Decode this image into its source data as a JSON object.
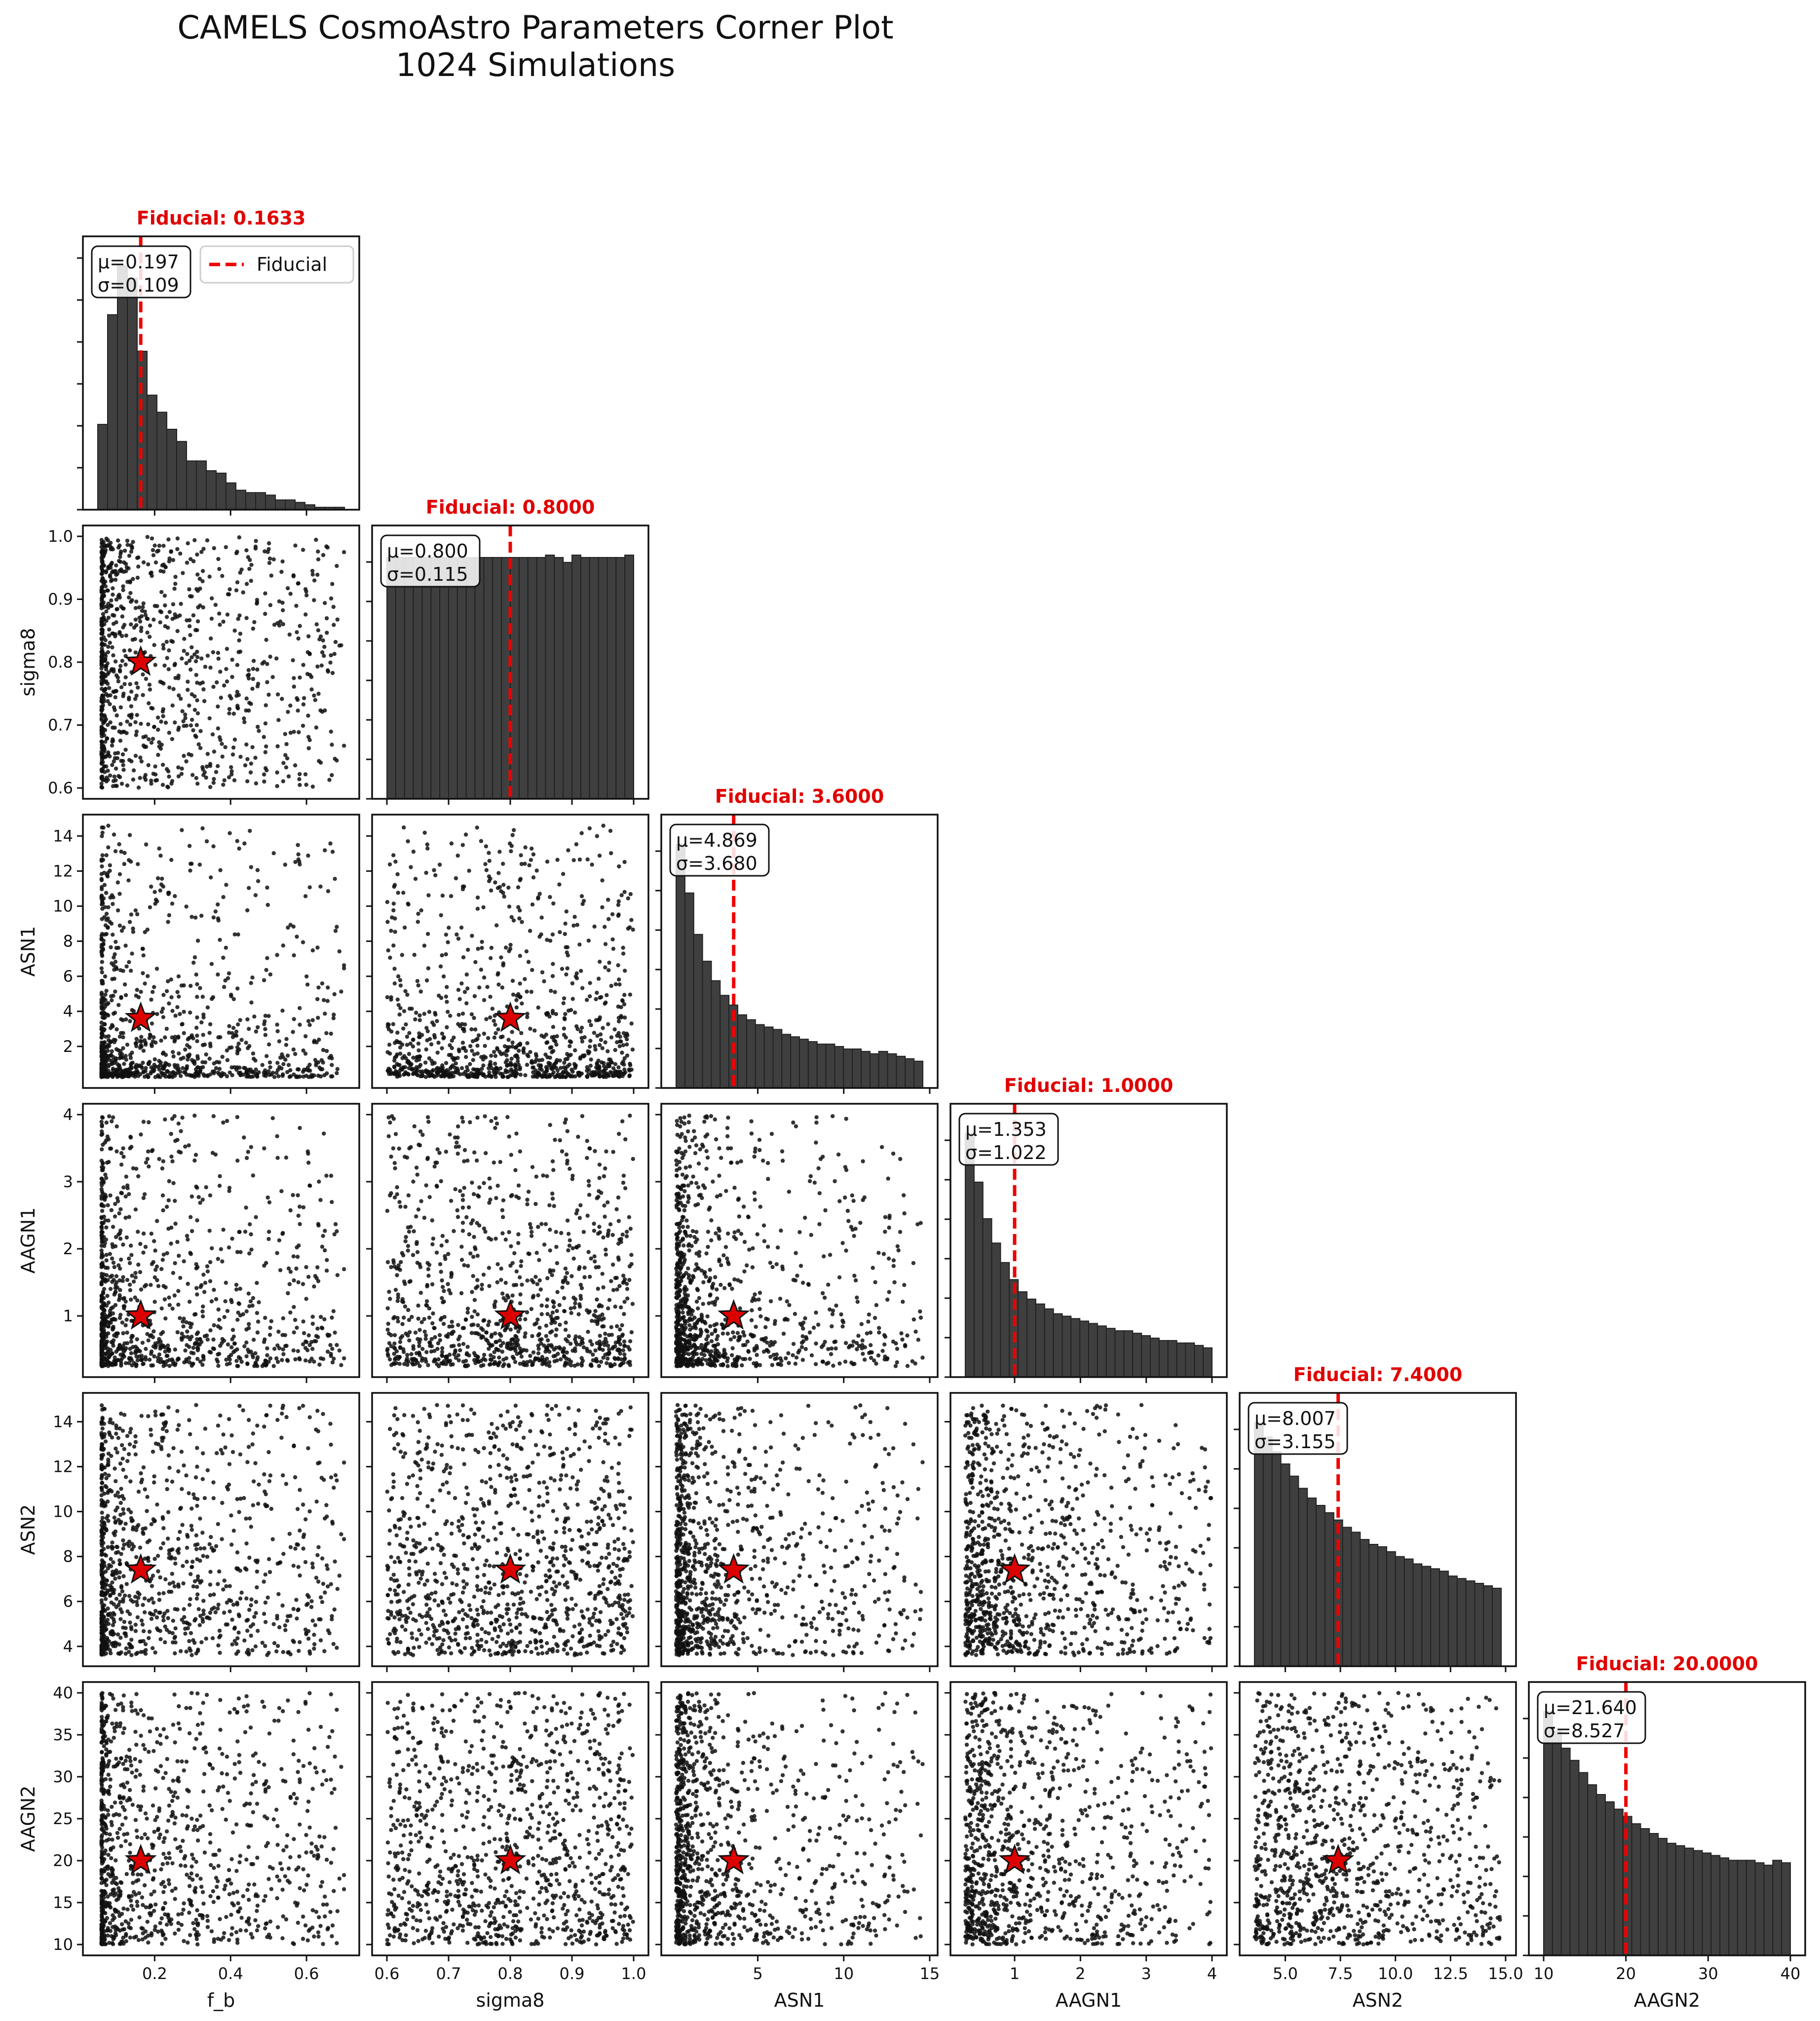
{
  "figure": {
    "title_line1": "CAMELS CosmoAstro Parameters Corner Plot",
    "title_line2": "1024 Simulations",
    "legend_label": "Fiducial",
    "colors": {
      "hist_fill": "#3f3f3f",
      "hist_edge": "#222222",
      "fiducial": "#ee0000",
      "points": "#111111",
      "star_fill": "#dd0000"
    }
  },
  "chart_data": {
    "type": "corner",
    "n_simulations": 1024,
    "grid": false,
    "legend_location": "upper right of first histogram",
    "parameters": [
      {
        "name": "f_b",
        "label": "f_b",
        "fiducial": 0.1633,
        "fiducial_label": "Fiducial: 0.1633",
        "mean": 0.197,
        "std": 0.109,
        "mu_label": "μ=0.197",
        "sigma_label": "σ=0.109",
        "range": [
          0.05,
          0.7
        ],
        "ticks": [
          0.2,
          0.4,
          0.6
        ],
        "tick_labels": [
          "0.2",
          "0.4",
          "0.6"
        ],
        "hist": [
          0.35,
          0.8,
          1.0,
          0.95,
          0.65,
          0.47,
          0.4,
          0.33,
          0.28,
          0.2,
          0.2,
          0.16,
          0.15,
          0.11,
          0.08,
          0.07,
          0.07,
          0.06,
          0.04,
          0.04,
          0.03,
          0.02,
          0.01,
          0.01,
          0.01
        ]
      },
      {
        "name": "sigma8",
        "label": "sigma8",
        "fiducial": 0.8,
        "fiducial_label": "Fiducial: 0.8000",
        "mean": 0.8,
        "std": 0.115,
        "mu_label": "μ=0.800",
        "sigma_label": "σ=0.115",
        "range": [
          0.6,
          1.0
        ],
        "ticks": [
          0.6,
          0.7,
          0.8,
          0.9,
          1.0
        ],
        "tick_labels": [
          "0.6",
          "0.7",
          "0.8",
          "0.9",
          "1.0"
        ],
        "hist": [
          0.99,
          0.99,
          0.99,
          0.99,
          0.99,
          0.99,
          0.99,
          0.99,
          0.99,
          0.99,
          0.99,
          0.99,
          0.99,
          0.99,
          0.99,
          0.99,
          0.99,
          0.99,
          1.0,
          0.99,
          0.97,
          1.0,
          0.99,
          0.99,
          0.99,
          0.99,
          0.99,
          1.0
        ]
      },
      {
        "name": "ASN1",
        "label": "ASN1",
        "fiducial": 3.6,
        "fiducial_label": "Fiducial: 3.6000",
        "mean": 4.869,
        "std": 3.68,
        "mu_label": "μ=4.869",
        "sigma_label": "σ=3.680",
        "range": [
          0.25,
          14.6
        ],
        "ticks": [
          2,
          4,
          6,
          8,
          10,
          12,
          14
        ],
        "tick_labels": [
          "2",
          "4",
          "6",
          "8",
          "10",
          "12",
          "14"
        ],
        "xticks": [
          5,
          10,
          15
        ],
        "xtick_labels": [
          "5",
          "10",
          "15"
        ],
        "hist": [
          1.0,
          0.8,
          0.63,
          0.52,
          0.44,
          0.38,
          0.34,
          0.3,
          0.28,
          0.26,
          0.25,
          0.24,
          0.22,
          0.21,
          0.2,
          0.19,
          0.18,
          0.18,
          0.17,
          0.16,
          0.16,
          0.15,
          0.14,
          0.15,
          0.14,
          0.13,
          0.12,
          0.11
        ]
      },
      {
        "name": "AAGN1",
        "label": "AAGN1",
        "fiducial": 1.0,
        "fiducial_label": "Fiducial: 1.0000",
        "mean": 1.353,
        "std": 1.022,
        "mu_label": "μ=1.353",
        "sigma_label": "σ=1.022",
        "range": [
          0.25,
          4.0
        ],
        "ticks": [
          1,
          2,
          3,
          4
        ],
        "tick_labels": [
          "1",
          "2",
          "3",
          "4"
        ],
        "hist": [
          1.0,
          0.8,
          0.65,
          0.55,
          0.47,
          0.4,
          0.35,
          0.32,
          0.3,
          0.28,
          0.26,
          0.25,
          0.24,
          0.23,
          0.22,
          0.21,
          0.2,
          0.19,
          0.19,
          0.18,
          0.17,
          0.16,
          0.15,
          0.15,
          0.14,
          0.14,
          0.13,
          0.12
        ]
      },
      {
        "name": "ASN2",
        "label": "ASN2",
        "fiducial": 7.4,
        "fiducial_label": "Fiducial: 7.4000",
        "mean": 8.007,
        "std": 3.155,
        "mu_label": "μ=8.007",
        "sigma_label": "σ=3.155",
        "range": [
          3.6,
          14.8
        ],
        "ticks": [
          4,
          6,
          8,
          10,
          12,
          14
        ],
        "tick_labels": [
          "4",
          "6",
          "8",
          "10",
          "12",
          "14"
        ],
        "xticks": [
          5.0,
          7.5,
          10.0,
          12.5,
          15.0
        ],
        "xtick_labels": [
          "5.0",
          "7.5",
          "10.0",
          "12.5",
          "15.0"
        ],
        "hist": [
          1.0,
          0.94,
          0.88,
          0.83,
          0.78,
          0.73,
          0.69,
          0.66,
          0.63,
          0.6,
          0.57,
          0.55,
          0.52,
          0.5,
          0.49,
          0.47,
          0.45,
          0.44,
          0.42,
          0.41,
          0.4,
          0.39,
          0.37,
          0.36,
          0.35,
          0.34,
          0.33,
          0.32
        ]
      },
      {
        "name": "AAGN2",
        "label": "AAGN2",
        "fiducial": 20.0,
        "fiducial_label": "Fiducial: 20.0000",
        "mean": 21.64,
        "std": 8.527,
        "mu_label": "μ=21.640",
        "sigma_label": "σ=8.527",
        "range": [
          10,
          40
        ],
        "ticks": [
          10,
          15,
          20,
          25,
          30,
          35,
          40
        ],
        "tick_labels": [
          "10",
          "15",
          "20",
          "25",
          "30",
          "35",
          "40"
        ],
        "xticks": [
          10,
          20,
          30,
          40
        ],
        "xtick_labels": [
          "10",
          "20",
          "30",
          "40"
        ],
        "hist": [
          1.0,
          0.92,
          0.85,
          0.8,
          0.75,
          0.7,
          0.66,
          0.63,
          0.6,
          0.57,
          0.54,
          0.52,
          0.5,
          0.48,
          0.46,
          0.45,
          0.44,
          0.43,
          0.42,
          0.41,
          0.4,
          0.39,
          0.39,
          0.39,
          0.38,
          0.37,
          0.39,
          0.38
        ]
      }
    ],
    "scatter_style": {
      "point_count": 1024,
      "marker": "dot",
      "fiducial_marker": "red-star"
    }
  }
}
